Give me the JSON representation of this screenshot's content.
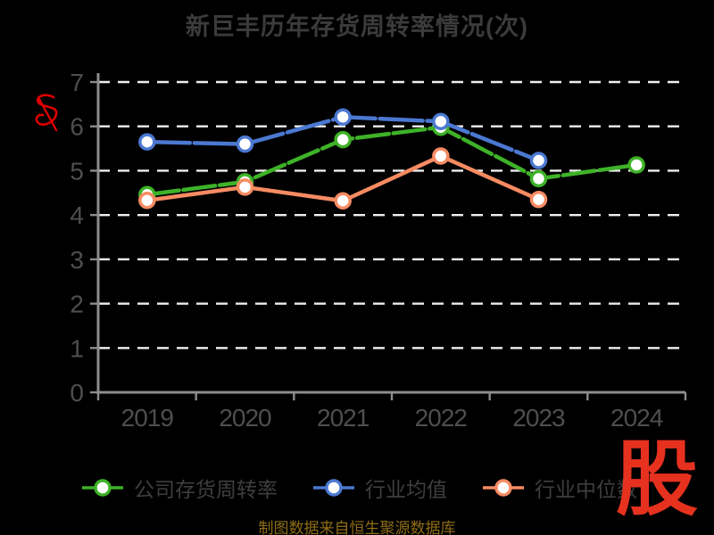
{
  "title": "新巨丰历年存货周转率情况(次)",
  "source_note": "制图数据来自恒生聚源数据库",
  "watermark": "股",
  "colors": {
    "background": "#000000",
    "title": "#3b3b3b",
    "gridline": "#efefef",
    "axis_line": "#8c8c8c",
    "axis_label": "#4e4e4e",
    "legend_label": "#3e3e3e",
    "source_note": "#8e6d15",
    "watermark_red": "#e6311f",
    "scribble_red": "#dd0000",
    "series_company_green": "#3eb228",
    "series_mean_blue": "#4b78d1",
    "series_median_orange": "#f78b62"
  },
  "chart_data": {
    "type": "line",
    "title": "新巨丰历年存货周转率情况(次)",
    "categories": [
      "2019",
      "2020",
      "2021",
      "2022",
      "2023",
      "2024"
    ],
    "series": [
      {
        "name": "公司存货周转率",
        "color": "#3eb228",
        "values": [
          4.46,
          4.75,
          5.7,
          5.98,
          4.82,
          5.13
        ]
      },
      {
        "name": "行业均值",
        "color": "#4b78d1",
        "values": [
          5.65,
          5.6,
          6.21,
          6.11,
          5.23,
          null
        ]
      },
      {
        "name": "行业中位数",
        "color": "#f78b62",
        "values": [
          4.33,
          4.63,
          4.32,
          5.33,
          4.35,
          null
        ]
      }
    ],
    "xlabel": "",
    "ylabel": "",
    "ylim": [
      0,
      7
    ],
    "y_ticks": [
      0,
      1,
      2,
      3,
      4,
      5,
      6,
      7
    ],
    "grid": "horizontal-dashed-white",
    "legend_position": "bottom",
    "marker": "hollow-circle"
  }
}
